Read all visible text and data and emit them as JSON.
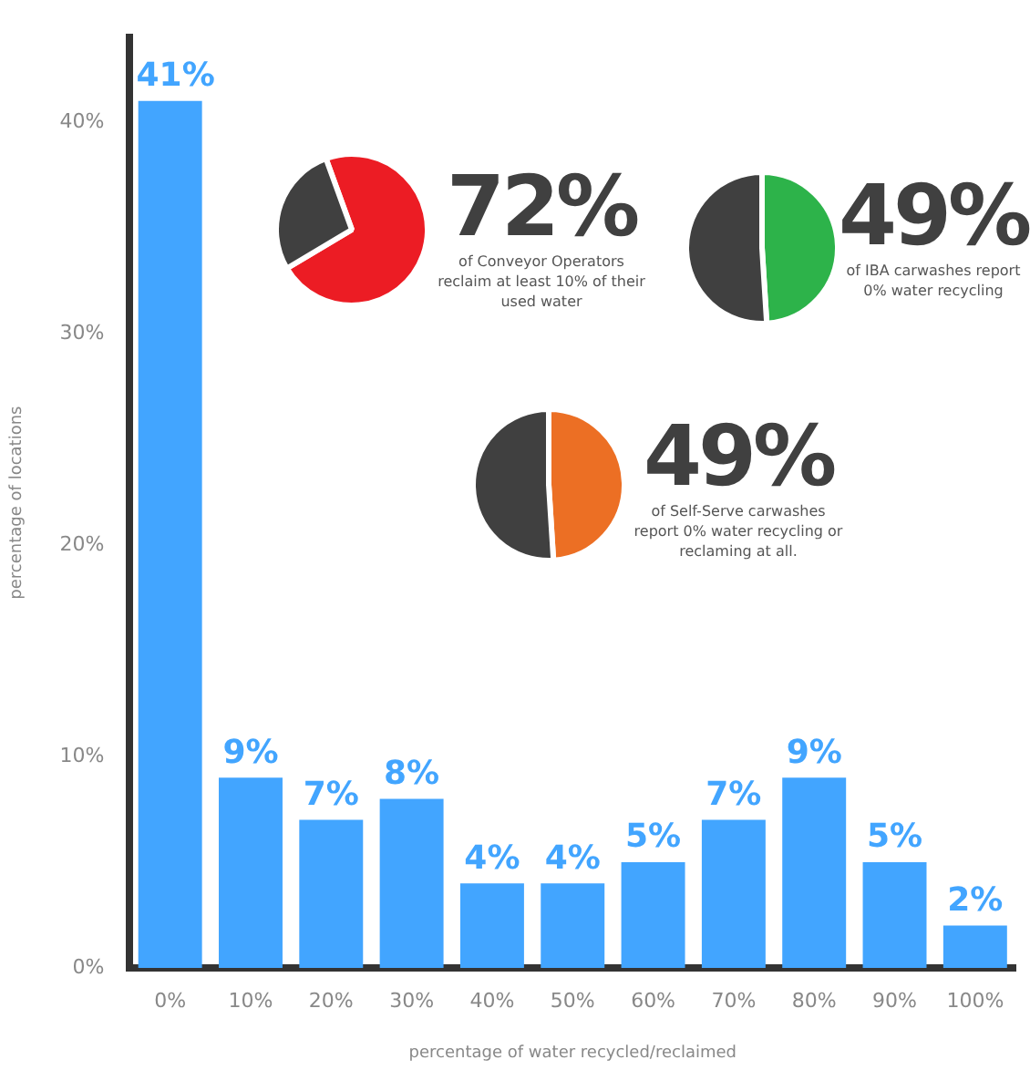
{
  "chart_data": [
    {
      "type": "bar",
      "xlabel": "percentage of water recycled/reclaimed",
      "ylabel": "percentage of locations",
      "categories": [
        "0%",
        "10%",
        "20%",
        "30%",
        "40%",
        "50%",
        "60%",
        "70%",
        "80%",
        "90%",
        "100%"
      ],
      "values": [
        41,
        9,
        7,
        8,
        4,
        4,
        5,
        7,
        9,
        5,
        2
      ],
      "color": "#42a5ff",
      "value_labels": [
        "41%",
        "9%",
        "7%",
        "8%",
        "4%",
        "4%",
        "5%",
        "7%",
        "9%",
        "5%",
        "2%"
      ],
      "ylim": [
        0,
        44
      ],
      "yticks": [
        {
          "value": 0,
          "label": "0%"
        },
        {
          "value": 10,
          "label": "10%"
        },
        {
          "value": 20,
          "label": "20%"
        },
        {
          "value": 30,
          "label": "30%"
        },
        {
          "value": 40,
          "label": "40%"
        }
      ],
      "grid": false,
      "legend": false
    },
    {
      "type": "pie",
      "categories": [
        null,
        null
      ],
      "values": [
        72,
        28
      ],
      "colors": [
        "#ec1c24",
        "#404040"
      ],
      "value_labels": [
        "72%",
        null
      ],
      "annotations": [
        "of Conveyor Operators reclaim at least 10% of their used water"
      ]
    },
    {
      "type": "pie",
      "categories": [
        null,
        null
      ],
      "values": [
        49,
        51
      ],
      "colors": [
        "#2db34a",
        "#404040"
      ],
      "value_labels": [
        "49%",
        null
      ],
      "annotations": [
        "of IBA carwashes report 0% water recycling"
      ]
    },
    {
      "type": "pie",
      "categories": [
        null,
        null
      ],
      "values": [
        49,
        51
      ],
      "colors": [
        "#ec6f24",
        "#404040"
      ],
      "value_labels": [
        "49%",
        null
      ],
      "annotations": [
        "of Self-Serve carwashes report 0% water recycling or reclaming at all."
      ]
    }
  ]
}
